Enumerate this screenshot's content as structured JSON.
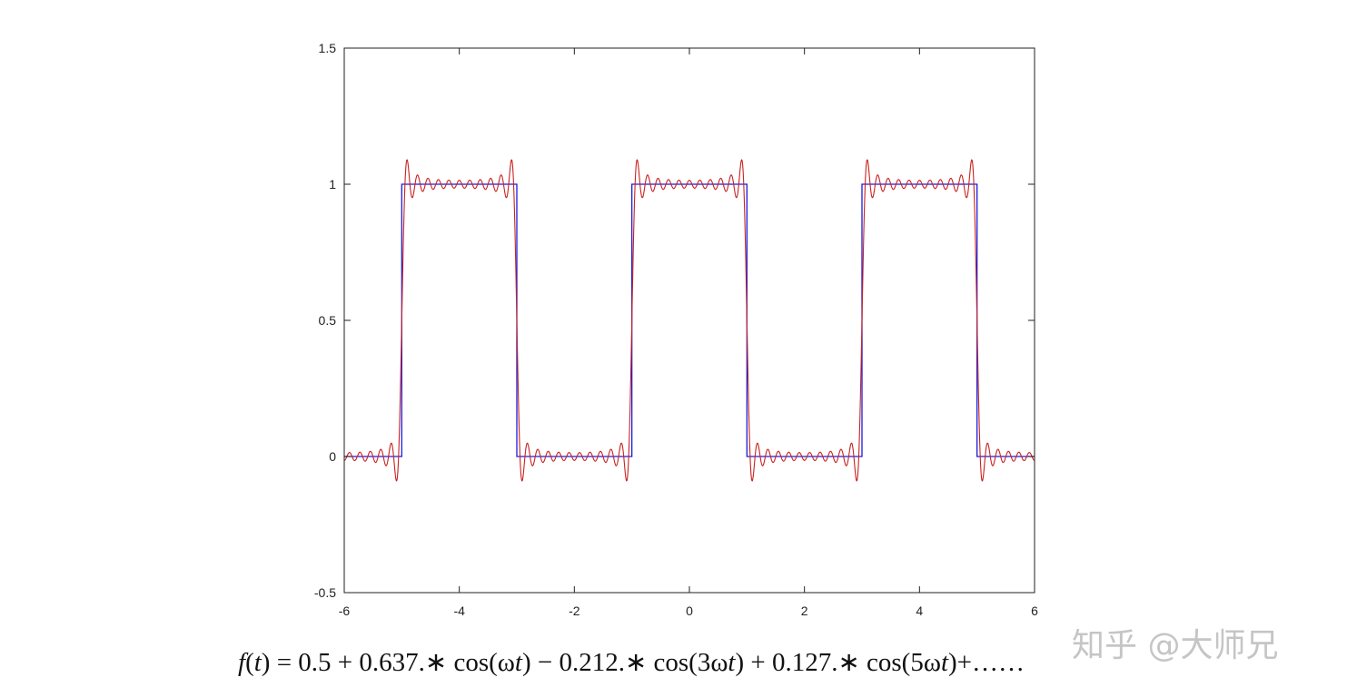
{
  "chart_data": {
    "type": "line",
    "title": "",
    "xlabel": "",
    "ylabel": "",
    "xlim": [
      -6,
      6
    ],
    "ylim": [
      -0.5,
      1.5
    ],
    "x_ticks": [
      -6,
      -4,
      -2,
      0,
      2,
      4,
      6
    ],
    "y_ticks": [
      -0.5,
      0,
      0.5,
      1,
      1.5
    ],
    "x_tick_labels": [
      "-6",
      "-4",
      "-2",
      "0",
      "2",
      "4",
      "6"
    ],
    "y_tick_labels": [
      "-0.5",
      "0",
      "0.5",
      "1",
      "1.5"
    ],
    "grid": false,
    "legend": "none",
    "series": [
      {
        "color": "#1a1adf",
        "x": [
          -6,
          -5,
          -5,
          -3,
          -3,
          -1,
          -1,
          1,
          1,
          3,
          3,
          5,
          5,
          6
        ],
        "y": [
          0,
          0,
          1,
          1,
          0,
          0,
          1,
          1,
          0,
          0,
          1,
          1,
          0,
          0
        ]
      },
      {
        "color": "#c8231f",
        "formula": "0.5 + Σ (2/(nπ))·sin(nπ/2)·cos(nπt/2), n = 1..21"
      }
    ]
  },
  "formula": {
    "lhs_f": "f",
    "lhs_open": "(",
    "lhs_t": "t",
    "lhs_close": ") = 0.5 + 0.637.∗ cos(ω",
    "t1": "t",
    "mid1": ") − 0.212.∗ cos(3ω",
    "t2": "t",
    "mid2": ") + 0.127.∗ cos(5ω",
    "t3": "t",
    "tail": ")+……"
  },
  "watermark": "知乎 @大师兄"
}
